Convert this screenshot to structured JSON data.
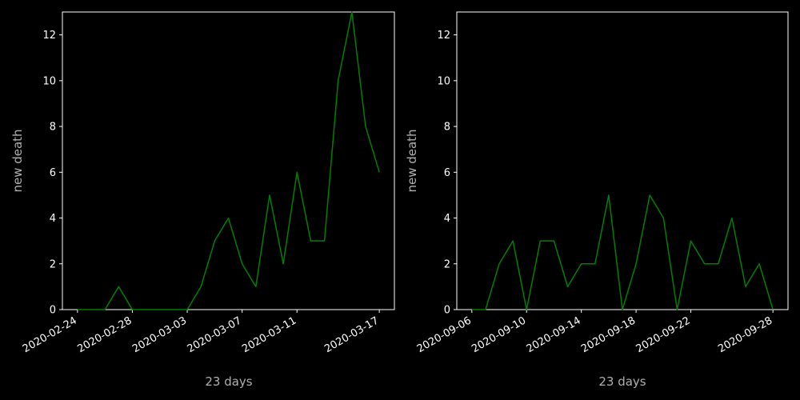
{
  "background": "#000000",
  "chart_data": [
    {
      "type": "line",
      "xlabel": "23 days",
      "ylabel": "new death",
      "ylim": [
        0,
        13
      ],
      "grid": false,
      "line_color": "#008000",
      "x": [
        "2020-02-24",
        "2020-02-25",
        "2020-02-26",
        "2020-02-27",
        "2020-02-28",
        "2020-02-29",
        "2020-03-01",
        "2020-03-02",
        "2020-03-03",
        "2020-03-04",
        "2020-03-05",
        "2020-03-06",
        "2020-03-07",
        "2020-03-08",
        "2020-03-09",
        "2020-03-10",
        "2020-03-11",
        "2020-03-12",
        "2020-03-13",
        "2020-03-14",
        "2020-03-15",
        "2020-03-16",
        "2020-03-17"
      ],
      "values": [
        0,
        0,
        0,
        1,
        0,
        0,
        0,
        0,
        0,
        1,
        3,
        4,
        2,
        1,
        5,
        2,
        6,
        3,
        3,
        10,
        13,
        8,
        6
      ],
      "xticks": [
        "2020-02-24",
        "2020-02-28",
        "2020-03-03",
        "2020-03-07",
        "2020-03-11",
        "2020-03-17"
      ],
      "yticks": [
        0,
        2,
        4,
        6,
        8,
        10,
        12
      ]
    },
    {
      "type": "line",
      "xlabel": "23 days",
      "ylabel": "new death",
      "ylim": [
        0,
        13
      ],
      "grid": false,
      "line_color": "#008000",
      "x": [
        "2020-09-06",
        "2020-09-07",
        "2020-09-08",
        "2020-09-09",
        "2020-09-10",
        "2020-09-11",
        "2020-09-12",
        "2020-09-13",
        "2020-09-14",
        "2020-09-15",
        "2020-09-16",
        "2020-09-17",
        "2020-09-18",
        "2020-09-19",
        "2020-09-20",
        "2020-09-21",
        "2020-09-22",
        "2020-09-23",
        "2020-09-24",
        "2020-09-25",
        "2020-09-26",
        "2020-09-27",
        "2020-09-28"
      ],
      "values": [
        0,
        0,
        2,
        3,
        0,
        3,
        3,
        1,
        2,
        2,
        5,
        0,
        2,
        5,
        4,
        0,
        3,
        2,
        2,
        4,
        1,
        2,
        0
      ],
      "xticks": [
        "2020-09-06",
        "2020-09-10",
        "2020-09-14",
        "2020-09-18",
        "2020-09-22",
        "2020-09-28"
      ],
      "yticks": [
        0,
        2,
        4,
        6,
        8,
        10,
        12
      ]
    }
  ]
}
